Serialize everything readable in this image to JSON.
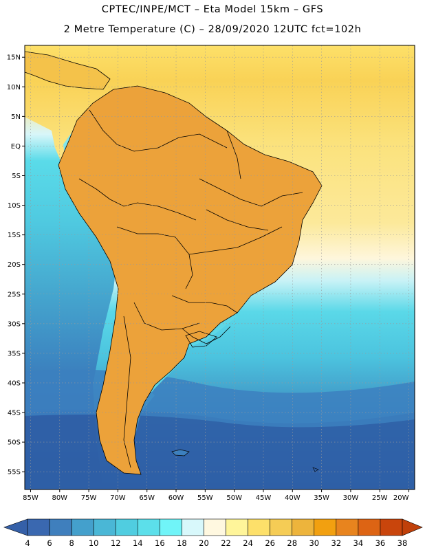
{
  "header": {
    "line1": "CPTEC/INPE/MCT –  Eta Model 15km – GFS",
    "line2": "2 Metre Temperature (C) – 28/09/2020 12UTC fct=102h"
  },
  "axes": {
    "lat_labels": [
      "15N",
      "10N",
      "5N",
      "EQ",
      "5S",
      "10S",
      "15S",
      "20S",
      "25S",
      "30S",
      "35S",
      "40S",
      "45S",
      "50S",
      "55S"
    ],
    "lat_values": [
      15,
      10,
      5,
      0,
      -5,
      -10,
      -15,
      -20,
      -25,
      -30,
      -35,
      -40,
      -45,
      -50,
      -55
    ],
    "lon_labels": [
      "85W",
      "80W",
      "75W",
      "70W",
      "65W",
      "60W",
      "55W",
      "50W",
      "45W",
      "40W",
      "35W",
      "30W",
      "25W",
      "20W"
    ],
    "lon_values": [
      -85,
      -80,
      -75,
      -70,
      -65,
      -60,
      -55,
      -50,
      -45,
      -40,
      -35,
      -30,
      -25,
      -20
    ],
    "lat_range": [
      -58,
      17
    ],
    "lon_range": [
      -86,
      -19
    ]
  },
  "colorbar": {
    "ticks": [
      "4",
      "6",
      "8",
      "10",
      "12",
      "14",
      "16",
      "18",
      "20",
      "22",
      "24",
      "26",
      "28",
      "30",
      "32",
      "34",
      "36",
      "38"
    ],
    "colors": [
      "#3a68b0",
      "#3f7fbd",
      "#44a0cc",
      "#4ab7d6",
      "#50cde0",
      "#5cdfea",
      "#70f4f8",
      "#d8f8fb",
      "#fff8e0",
      "#fff59a",
      "#fde06a",
      "#f5cc55",
      "#edb43c",
      "#f2a010",
      "#e8841e",
      "#dd6414",
      "#c9450c"
    ],
    "under_color": "#3560a8",
    "over_color": "#c0400a",
    "unit": "C"
  },
  "ocean_colors": {
    "pacific_south": "#2e5ea4",
    "pacific_mid": "#3f86c0",
    "pacific_north": "#4cc4df",
    "atlantic_south": "#3a78b8",
    "atlantic_mid": "#52d0e3",
    "atlantic_north": "#fde069"
  }
}
